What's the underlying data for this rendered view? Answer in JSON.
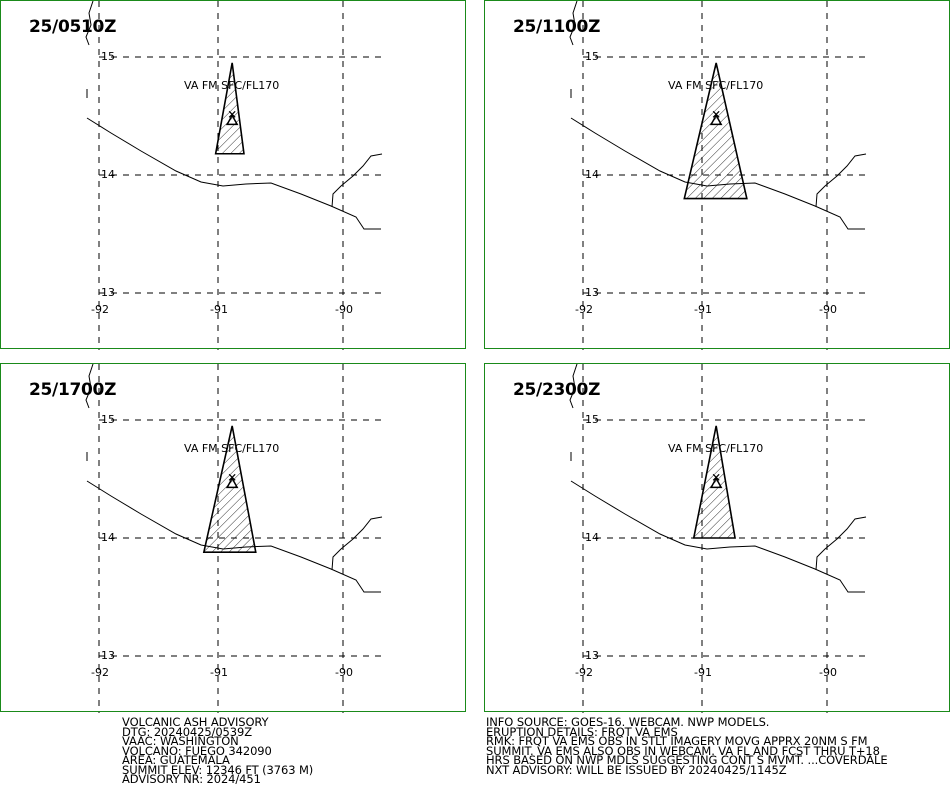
{
  "panels": [
    {
      "time": "25/0510Z",
      "layer": "VA FM SFC/FL170"
    },
    {
      "time": "25/1100Z",
      "layer": "VA FM SFC/FL170"
    },
    {
      "time": "25/1700Z",
      "layer": "VA FM SFC/FL170"
    },
    {
      "time": "25/2300Z",
      "layer": "VA FM SFC/FL170"
    }
  ],
  "grid": {
    "lat_labels": [
      "15",
      "14",
      "13"
    ],
    "lon_labels": [
      "-92",
      "-91",
      "-90"
    ]
  },
  "ash_polygons": [
    [
      [
        14.95,
        -90.88
      ],
      [
        14.18,
        -91.02
      ],
      [
        14.18,
        -90.78
      ]
    ],
    [
      [
        14.95,
        -90.88
      ],
      [
        13.8,
        -91.15
      ],
      [
        13.8,
        -90.62
      ]
    ],
    [
      [
        14.95,
        -90.88
      ],
      [
        13.88,
        -91.12
      ],
      [
        13.88,
        -90.68
      ]
    ],
    [
      [
        14.95,
        -90.88
      ],
      [
        14.0,
        -91.07
      ],
      [
        14.0,
        -90.72
      ]
    ]
  ],
  "advisory_left": [
    "VOLCANIC ASH ADVISORY",
    "DTG: 20240425/0539Z",
    "VAAC: WASHINGTON",
    "VOLCANO: FUEGO 342090",
    "AREA: GUATEMALA",
    "SUMMIT ELEV: 12346 FT (3763 M)",
    "ADVISORY NR: 2024/451"
  ],
  "advisory_right": [
    "INFO SOURCE: GOES-16. WEBCAM. NWP MODELS.",
    "ERUPTION DETAILS: FRQT VA EMS",
    "RMK: FRQT VA EMS OBS IN STLT IMAGERY MOVG APPRX 20NM S FM",
    "SUMMIT. VA EMS ALSO OBS IN WEBCAM. VA FL AND FCST THRU T+18",
    "HRS BASED ON NWP MDLS SUGGESTING CONT S MVMT. ...COVERDALE",
    "NXT ADVISORY: WILL BE ISSUED BY 20240425/1145Z"
  ]
}
